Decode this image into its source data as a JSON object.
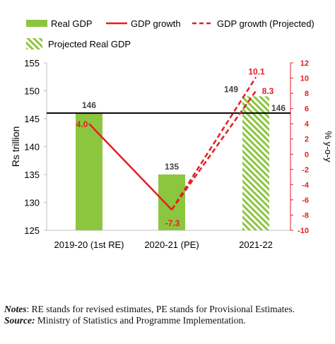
{
  "chart_data": {
    "type": "bar+line",
    "categories": [
      "2019-20 (1st RE)",
      "2020-21 (PE)",
      "2021-22"
    ],
    "bars": {
      "real_gdp": {
        "name": "Real GDP",
        "values": [
          146,
          135,
          null
        ],
        "color": "#8cc63f"
      },
      "projected_real_gdp": {
        "name": "Projected Real GDP",
        "values": [
          null,
          null,
          149
        ],
        "color": "#8cc63f",
        "pattern": "hatched"
      }
    },
    "bar_labels": [
      "146",
      "135",
      "149"
    ],
    "reference_line": {
      "value": 146,
      "label": "146",
      "color": "#000000"
    },
    "lines": {
      "gdp_growth": {
        "name": "GDP growth",
        "values": [
          4.0,
          -7.3,
          null
        ],
        "labels": [
          "4.0",
          "-7.3",
          ""
        ],
        "color": "#e31e24",
        "style": "solid"
      },
      "gdp_growth_projected": {
        "name": "GDP growth (Projected)",
        "points": [
          {
            "x": 1,
            "y": -7.3
          },
          {
            "x": 2,
            "y": 10.1
          },
          {
            "x": 2,
            "y": 8.3
          }
        ],
        "labels": [
          "10.1",
          "8.3"
        ],
        "color": "#e31e24",
        "style": "dashed"
      }
    },
    "y_left": {
      "label": "Rs trillion",
      "min": 125,
      "max": 155,
      "ticks": [
        125,
        130,
        135,
        140,
        145,
        150,
        155
      ],
      "color": "#000000"
    },
    "y_right": {
      "label": "% y-o-y",
      "min": -10,
      "max": 12,
      "ticks": [
        -10,
        -8,
        -6,
        -4,
        -2,
        0,
        2,
        4,
        6,
        8,
        10,
        12
      ],
      "color": "#e31e24"
    },
    "legend": [
      "Real GDP",
      "GDP growth",
      "GDP growth (Projected)",
      "Projected Real GDP"
    ],
    "legend_position": "top"
  },
  "notes": {
    "notes_label": "Notes",
    "notes_text": ":  RE stands for revised estimates, PE stands for Provisional Estimates.",
    "source_label": "Source:",
    "source_text": " Ministry of Statistics and Programme Implementation."
  }
}
